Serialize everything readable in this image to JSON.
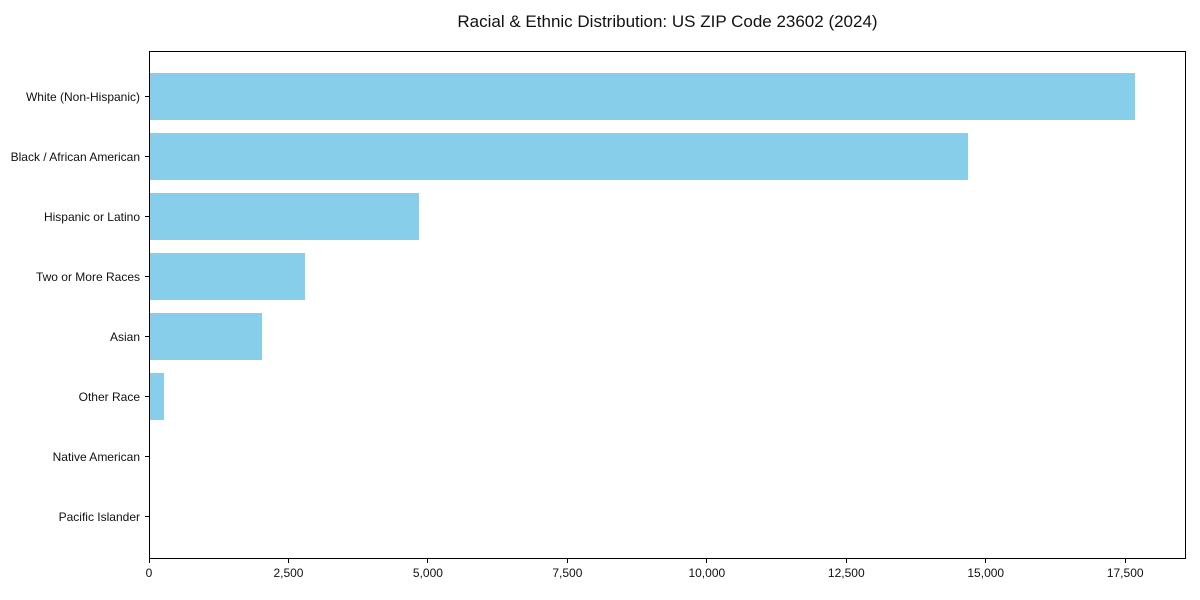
{
  "title": "Racial & Ethnic Distribution: US ZIP Code 23602 (2024)",
  "colors": {
    "bar": "#87CEEB",
    "axis": "#000000",
    "background": "#ffffff",
    "text": "#111111"
  },
  "chart_data": {
    "type": "bar",
    "orientation": "horizontal",
    "title": "Racial & Ethnic Distribution: US ZIP Code 23602 (2024)",
    "categories": [
      "White (Non-Hispanic)",
      "Black / African American",
      "Hispanic or Latino",
      "Two or More Races",
      "Asian",
      "Other Race",
      "Native American",
      "Pacific Islander"
    ],
    "values": [
      17700,
      14690,
      4840,
      2780,
      2010,
      250,
      0,
      0
    ],
    "xlabel": "",
    "ylabel": "",
    "xlim": [
      0,
      18590
    ],
    "xticks": [
      0,
      2500,
      5000,
      7500,
      10000,
      12500,
      15000,
      17500
    ],
    "xtick_labels": [
      "0",
      "2,500",
      "5,000",
      "7,500",
      "10,000",
      "12,500",
      "15,000",
      "17,500"
    ],
    "bar_color": "#87CEEB",
    "grid": false,
    "legend": null
  }
}
